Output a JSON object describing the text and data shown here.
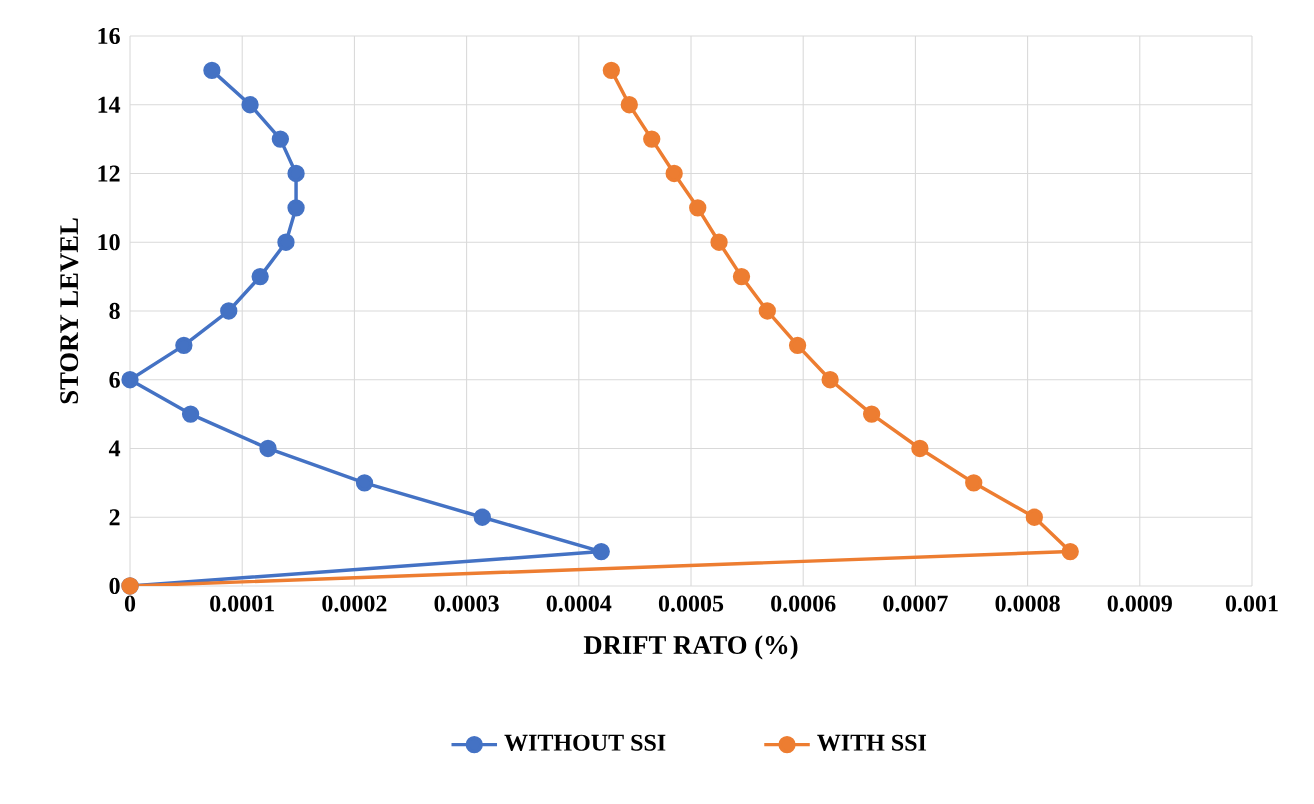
{
  "chart_data": {
    "type": "line",
    "xlabel": "DRIFT RATO (%)",
    "ylabel": "STORY LEVEL",
    "xlim": [
      0,
      0.001
    ],
    "xticks": [
      0,
      0.0001,
      0.0002,
      0.0003,
      0.0004,
      0.0005,
      0.0006,
      0.0007,
      0.0008,
      0.0009,
      0.001
    ],
    "ylim": [
      0,
      16
    ],
    "yticks": [
      0,
      2,
      4,
      6,
      8,
      10,
      12,
      14,
      16
    ],
    "grid": true,
    "legend": "bottom",
    "marker": "circle",
    "line_style": "solid",
    "series": [
      {
        "name": "WITHOUT SSI",
        "color": "#4472c4",
        "x": [
          0,
          0.00042,
          0.000314,
          0.000209,
          0.000123,
          5.4e-05,
          0,
          4.8e-05,
          8.8e-05,
          0.000116,
          0.000139,
          0.000148,
          0.000148,
          0.000134,
          0.000107,
          7.3e-05
        ],
        "values": [
          0,
          1,
          2,
          3,
          4,
          5,
          6,
          7,
          8,
          9,
          10,
          11,
          12,
          13,
          14,
          15
        ]
      },
      {
        "name": "WITH SSI",
        "color": "#ed7d31",
        "x": [
          0,
          0.000838,
          0.000806,
          0.000752,
          0.000704,
          0.000661,
          0.000624,
          0.000595,
          0.000568,
          0.000545,
          0.000525,
          0.000506,
          0.000485,
          0.000465,
          0.000445,
          0.000429
        ],
        "values": [
          0,
          1,
          2,
          3,
          4,
          5,
          6,
          7,
          8,
          9,
          10,
          11,
          12,
          13,
          14,
          15
        ]
      }
    ]
  }
}
